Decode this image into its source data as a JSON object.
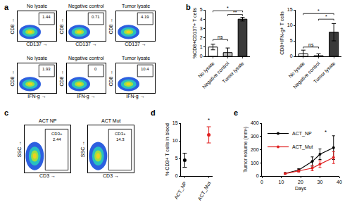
{
  "panel_labels": [
    "a",
    "b",
    "c",
    "d",
    "e"
  ],
  "chart_data": [
    {
      "type": "flow",
      "title": "No lysate",
      "x_label": "CD137 →",
      "y_label": "CD8 →",
      "gate_value": 1.44
    },
    {
      "type": "flow",
      "title": "Negative control",
      "x_label": "CD137 →",
      "y_label": "CD8 →",
      "gate_value": 0.71
    },
    {
      "type": "flow",
      "title": "Tumor lysate",
      "x_label": "CD137 →",
      "y_label": "CD8 →",
      "gate_value": 4.19
    },
    {
      "type": "flow",
      "title": "No lysate",
      "x_label": "IFN-g →",
      "y_label": "CD8 →",
      "gate_value": 1.93
    },
    {
      "type": "flow",
      "title": "Negative control",
      "x_label": "IFN-g →",
      "y_label": "CD8 →",
      "gate_value": 0
    },
    {
      "type": "flow",
      "title": "Tumor lysate",
      "x_label": "IFN-g →",
      "y_label": "CD8 →",
      "gate_value": 10.4
    },
    {
      "type": "bar",
      "y_label": "%CD8+CD137+ T cells",
      "categories": [
        "No lysate",
        "Negative control",
        "Tumor lysate"
      ],
      "values": [
        1.0,
        0.4,
        4.0
      ],
      "errors": [
        0.3,
        0.5,
        0.2
      ],
      "colors": [
        "#ffffff",
        "#bfbfbf",
        "#3a3a3a"
      ],
      "ylim": [
        0,
        5
      ],
      "yticks": [
        0,
        1,
        2,
        3,
        4,
        5
      ],
      "significance": [
        {
          "from": "No lysate",
          "to": "Negative control",
          "y": 1.8,
          "label": "ns"
        },
        {
          "from": "Negative control",
          "to": "Tumor lysate",
          "y": 4.5,
          "label": "**"
        },
        {
          "from": "No lysate",
          "to": "Tumor lysate",
          "y": 4.9,
          "label": "*"
        }
      ]
    },
    {
      "type": "bar",
      "y_label": "CD8+IFN-g+ T cells",
      "categories": [
        "No lysate",
        "Negative control",
        "Tumor lysate"
      ],
      "values": [
        0.8,
        0.2,
        7.8
      ],
      "errors": [
        1.2,
        0.6,
        2.8
      ],
      "colors": [
        "#ffffff",
        "#bfbfbf",
        "#3a3a3a"
      ],
      "ylim": [
        0,
        15
      ],
      "yticks": [
        0,
        5,
        10,
        15
      ],
      "significance": [
        {
          "from": "No lysate",
          "to": "Negative control",
          "y": 3,
          "label": "ns"
        },
        {
          "from": "Negative control",
          "to": "Tumor lysate",
          "y": 12,
          "label": "*"
        },
        {
          "from": "No lysate",
          "to": "Tumor lysate",
          "y": 13.8,
          "label": "*"
        }
      ]
    },
    {
      "type": "flow",
      "title": "ACT NP",
      "x_label": "CD3 →",
      "y_label": "SSC →",
      "gate_text": "CD3+",
      "gate_value": 2.44
    },
    {
      "type": "flow",
      "title": "ACT Mut",
      "x_label": "CD3 →",
      "y_label": "SSC →",
      "gate_text": "CD3+",
      "gate_value": 14.3
    },
    {
      "type": "scatter",
      "y_label": "% CD3+ T cells in blood",
      "categories": [
        "ACT_NP",
        "ACT_Mut"
      ],
      "values": [
        4.5,
        11.7
      ],
      "errors": [
        2.0,
        2.3
      ],
      "colors": [
        "#000000",
        "#e02020"
      ],
      "marker": "circle",
      "ylim": [
        0,
        15
      ],
      "yticks": [
        0,
        5,
        10,
        15
      ],
      "annotations": [
        {
          "category": "ACT_Mut",
          "y": 14.6,
          "text": "*"
        }
      ]
    },
    {
      "type": "line",
      "x_label": "Days",
      "y_label": "Tumor volume (mm³)",
      "x": [
        12,
        19,
        26,
        30,
        37
      ],
      "series": [
        {
          "name": "ACT_NP",
          "color": "#000000",
          "marker": "circle",
          "values": [
            20,
            45,
            110,
            165,
            215
          ],
          "errors": [
            5,
            10,
            35,
            40,
            90
          ]
        },
        {
          "name": "ACT_Mut",
          "color": "#e02020",
          "marker": "circle",
          "values": [
            18,
            38,
            60,
            90,
            140
          ],
          "errors": [
            4,
            8,
            20,
            25,
            45
          ]
        }
      ],
      "xlim": [
        0,
        40
      ],
      "xticks": [
        0,
        10,
        20,
        30,
        40
      ],
      "ylim": [
        0,
        400
      ],
      "yticks": [
        0,
        100,
        200,
        300,
        400
      ],
      "legend": "upper left",
      "annotations": [
        {
          "x": 33,
          "y": 300,
          "text": "*"
        }
      ]
    }
  ]
}
